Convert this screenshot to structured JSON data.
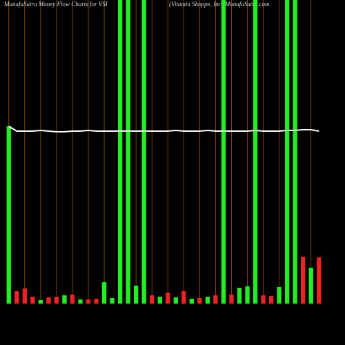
{
  "chart_data": {
    "type": "bar",
    "title": "MunafaSutra  Money Flow  Charts for VSI",
    "subtitle": "(Vitamin  Shoppe,  Inc)  MunafaSutra.com",
    "categories": [
      null,
      null,
      null,
      null,
      null,
      null,
      null,
      null,
      null,
      null,
      null,
      null,
      null,
      null,
      null,
      null,
      null,
      null,
      null,
      null,
      null,
      null,
      null,
      null,
      null,
      null,
      null,
      null,
      null,
      null,
      null,
      null,
      null,
      null,
      null,
      null,
      null,
      null,
      null,
      null
    ],
    "values": [
      257,
      18,
      22,
      10,
      5,
      9,
      10,
      12,
      13,
      6,
      6,
      7,
      31,
      8,
      440,
      440,
      26,
      440,
      12,
      10,
      16,
      9,
      18,
      7,
      8,
      10,
      12,
      440,
      13,
      23,
      25,
      440,
      12,
      11,
      24,
      440,
      440,
      68,
      52,
      67
    ],
    "colors": [
      "#22ee22",
      "#ee2222",
      "#ee2222",
      "#ee2222",
      "#22ee22",
      "#ee2222",
      "#ee2222",
      "#22ee22",
      "#ee2222",
      "#22ee22",
      "#ee2222",
      "#ee2222",
      "#22ee22",
      "#22ee22",
      "#22ee22",
      "#22ee22",
      "#22ee22",
      "#22ee22",
      "#ee2222",
      "#22ee22",
      "#ee2222",
      "#22ee22",
      "#ee2222",
      "#22ee22",
      "#ee2222",
      "#22ee22",
      "#ee2222",
      "#22ee22",
      "#ee2222",
      "#22ee22",
      "#22ee22",
      "#22ee22",
      "#ee2222",
      "#ee2222",
      "#22ee22",
      "#22ee22",
      "#22ee22",
      "#ee2222",
      "#22ee22",
      "#ee2222"
    ],
    "line": {
      "color": "#ffffff",
      "values": [
        257,
        250,
        250,
        250,
        251,
        250,
        249,
        249,
        250,
        250,
        251,
        250,
        250,
        250,
        250,
        250,
        250,
        250,
        250,
        250,
        250,
        251,
        250,
        250,
        250,
        251,
        250,
        250,
        250,
        250,
        250,
        251,
        250,
        250,
        250,
        251,
        251,
        252,
        252,
        250
      ]
    },
    "ylim": [
      0,
      440
    ]
  }
}
